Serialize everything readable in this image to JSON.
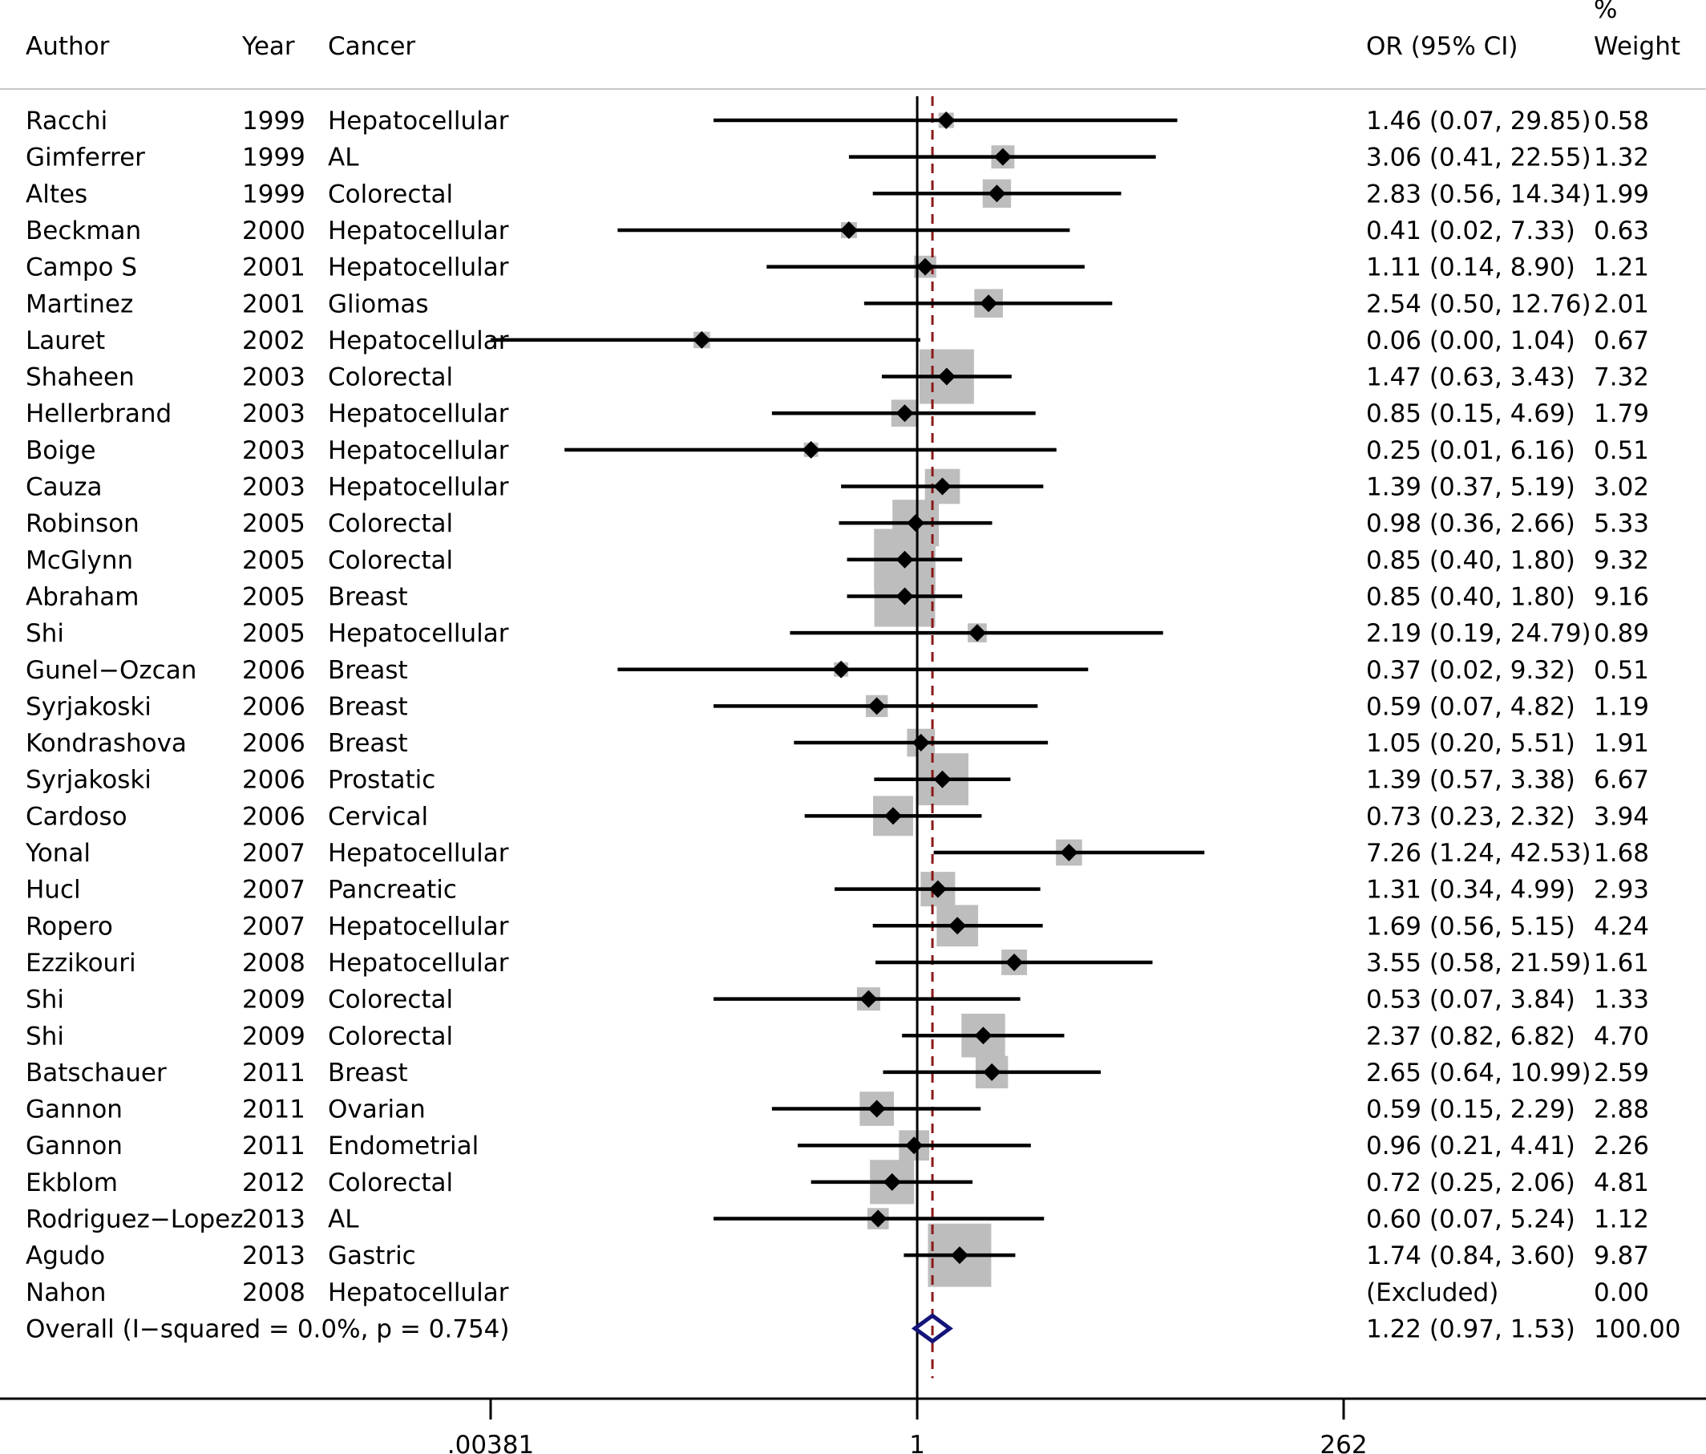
{
  "headers": {
    "author": "Author",
    "year": "Year",
    "cancer": "Cancer",
    "or": "OR (95% CI)",
    "weight_symbol": "%",
    "weight": "Weight"
  },
  "axis": {
    "scale": "log",
    "range": [
      0.00381,
      262
    ],
    "ticks": [
      {
        "value": 0.00381,
        "label": ".00381"
      },
      {
        "value": 1,
        "label": "1"
      },
      {
        "value": 262,
        "label": "262"
      }
    ],
    "null_line": 1,
    "pooled_line": 1.22
  },
  "colors": {
    "marker": "#000000",
    "weight_box": "#bdbdbd",
    "ci_line": "#000000",
    "pooled_line": "#8b1a1a",
    "overall_diamond": "#14147a"
  },
  "chart_data": {
    "type": "forest",
    "measure": "OR",
    "studies": [
      {
        "author": "Racchi",
        "year": "1999",
        "cancer": "Hepatocellular",
        "or": 1.46,
        "lo": 0.07,
        "hi": 29.85,
        "or_text": "1.46 (0.07, 29.85)",
        "weight": 0.58,
        "weight_text": "0.58"
      },
      {
        "author": "Gimferrer",
        "year": "1999",
        "cancer": "AL",
        "or": 3.06,
        "lo": 0.41,
        "hi": 22.55,
        "or_text": "3.06 (0.41, 22.55)",
        "weight": 1.32,
        "weight_text": "1.32"
      },
      {
        "author": "Altes",
        "year": "1999",
        "cancer": "Colorectal",
        "or": 2.83,
        "lo": 0.56,
        "hi": 14.34,
        "or_text": "2.83 (0.56, 14.34)",
        "weight": 1.99,
        "weight_text": "1.99"
      },
      {
        "author": "Beckman",
        "year": "2000",
        "cancer": "Hepatocellular",
        "or": 0.41,
        "lo": 0.02,
        "hi": 7.33,
        "or_text": "0.41 (0.02, 7.33)",
        "weight": 0.63,
        "weight_text": "0.63"
      },
      {
        "author": "Campo S",
        "year": "2001",
        "cancer": "Hepatocellular",
        "or": 1.11,
        "lo": 0.14,
        "hi": 8.9,
        "or_text": "1.11 (0.14, 8.90)",
        "weight": 1.21,
        "weight_text": "1.21"
      },
      {
        "author": "Martinez",
        "year": "2001",
        "cancer": "Gliomas",
        "or": 2.54,
        "lo": 0.5,
        "hi": 12.76,
        "or_text": "2.54 (0.50, 12.76)",
        "weight": 2.01,
        "weight_text": "2.01"
      },
      {
        "author": "Lauret",
        "year": "2002",
        "cancer": "Hepatocellular",
        "or": 0.06,
        "lo": 0.0,
        "hi": 1.04,
        "or_text": "0.06 (0.00, 1.04)",
        "weight": 0.67,
        "weight_text": "0.67"
      },
      {
        "author": "Shaheen",
        "year": "2003",
        "cancer": "Colorectal",
        "or": 1.47,
        "lo": 0.63,
        "hi": 3.43,
        "or_text": "1.47 (0.63, 3.43)",
        "weight": 7.32,
        "weight_text": "7.32"
      },
      {
        "author": "Hellerbrand",
        "year": "2003",
        "cancer": "Hepatocellular",
        "or": 0.85,
        "lo": 0.15,
        "hi": 4.69,
        "or_text": "0.85 (0.15, 4.69)",
        "weight": 1.79,
        "weight_text": "1.79"
      },
      {
        "author": "Boige",
        "year": "2003",
        "cancer": "Hepatocellular",
        "or": 0.25,
        "lo": 0.01,
        "hi": 6.16,
        "or_text": "0.25 (0.01, 6.16)",
        "weight": 0.51,
        "weight_text": "0.51"
      },
      {
        "author": "Cauza",
        "year": "2003",
        "cancer": "Hepatocellular",
        "or": 1.39,
        "lo": 0.37,
        "hi": 5.19,
        "or_text": "1.39 (0.37, 5.19)",
        "weight": 3.02,
        "weight_text": "3.02"
      },
      {
        "author": "Robinson",
        "year": "2005",
        "cancer": "Colorectal",
        "or": 0.98,
        "lo": 0.36,
        "hi": 2.66,
        "or_text": "0.98 (0.36, 2.66)",
        "weight": 5.33,
        "weight_text": "5.33"
      },
      {
        "author": "McGlynn",
        "year": "2005",
        "cancer": "Colorectal",
        "or": 0.85,
        "lo": 0.4,
        "hi": 1.8,
        "or_text": "0.85 (0.40, 1.80)",
        "weight": 9.32,
        "weight_text": "9.32"
      },
      {
        "author": "Abraham",
        "year": "2005",
        "cancer": "Breast",
        "or": 0.85,
        "lo": 0.4,
        "hi": 1.8,
        "or_text": "0.85 (0.40, 1.80)",
        "weight": 9.16,
        "weight_text": "9.16"
      },
      {
        "author": "Shi",
        "year": "2005",
        "cancer": "Hepatocellular",
        "or": 2.19,
        "lo": 0.19,
        "hi": 24.79,
        "or_text": "2.19 (0.19, 24.79)",
        "weight": 0.89,
        "weight_text": "0.89"
      },
      {
        "author": "Gunel−Ozcan",
        "year": "2006",
        "cancer": "Breast",
        "or": 0.37,
        "lo": 0.02,
        "hi": 9.32,
        "or_text": "0.37 (0.02, 9.32)",
        "weight": 0.51,
        "weight_text": "0.51"
      },
      {
        "author": "Syrjakoski",
        "year": "2006",
        "cancer": "Breast",
        "or": 0.59,
        "lo": 0.07,
        "hi": 4.82,
        "or_text": "0.59 (0.07, 4.82)",
        "weight": 1.19,
        "weight_text": "1.19"
      },
      {
        "author": "Kondrashova",
        "year": "2006",
        "cancer": "Breast",
        "or": 1.05,
        "lo": 0.2,
        "hi": 5.51,
        "or_text": "1.05 (0.20, 5.51)",
        "weight": 1.91,
        "weight_text": "1.91"
      },
      {
        "author": "Syrjakoski",
        "year": "2006",
        "cancer": "Prostatic",
        "or": 1.39,
        "lo": 0.57,
        "hi": 3.38,
        "or_text": "1.39 (0.57, 3.38)",
        "weight": 6.67,
        "weight_text": "6.67"
      },
      {
        "author": "Cardoso",
        "year": "2006",
        "cancer": "Cervical",
        "or": 0.73,
        "lo": 0.23,
        "hi": 2.32,
        "or_text": "0.73 (0.23, 2.32)",
        "weight": 3.94,
        "weight_text": "3.94"
      },
      {
        "author": "Yonal",
        "year": "2007",
        "cancer": "Hepatocellular",
        "or": 7.26,
        "lo": 1.24,
        "hi": 42.53,
        "or_text": "7.26 (1.24, 42.53)",
        "weight": 1.68,
        "weight_text": "1.68"
      },
      {
        "author": "Hucl",
        "year": "2007",
        "cancer": "Pancreatic",
        "or": 1.31,
        "lo": 0.34,
        "hi": 4.99,
        "or_text": "1.31 (0.34, 4.99)",
        "weight": 2.93,
        "weight_text": "2.93"
      },
      {
        "author": "Ropero",
        "year": "2007",
        "cancer": "Hepatocellular",
        "or": 1.69,
        "lo": 0.56,
        "hi": 5.15,
        "or_text": "1.69 (0.56, 5.15)",
        "weight": 4.24,
        "weight_text": "4.24"
      },
      {
        "author": "Ezzikouri",
        "year": "2008",
        "cancer": "Hepatocellular",
        "or": 3.55,
        "lo": 0.58,
        "hi": 21.59,
        "or_text": "3.55 (0.58, 21.59)",
        "weight": 1.61,
        "weight_text": "1.61"
      },
      {
        "author": "Shi",
        "year": "2009",
        "cancer": "Colorectal",
        "or": 0.53,
        "lo": 0.07,
        "hi": 3.84,
        "or_text": "0.53 (0.07, 3.84)",
        "weight": 1.33,
        "weight_text": "1.33"
      },
      {
        "author": "Shi",
        "year": "2009",
        "cancer": "Colorectal",
        "or": 2.37,
        "lo": 0.82,
        "hi": 6.82,
        "or_text": "2.37 (0.82, 6.82)",
        "weight": 4.7,
        "weight_text": "4.70"
      },
      {
        "author": "Batschauer",
        "year": "2011",
        "cancer": "Breast",
        "or": 2.65,
        "lo": 0.64,
        "hi": 10.99,
        "or_text": "2.65 (0.64, 10.99)",
        "weight": 2.59,
        "weight_text": "2.59"
      },
      {
        "author": "Gannon",
        "year": "2011",
        "cancer": "Ovarian",
        "or": 0.59,
        "lo": 0.15,
        "hi": 2.29,
        "or_text": "0.59 (0.15, 2.29)",
        "weight": 2.88,
        "weight_text": "2.88"
      },
      {
        "author": "Gannon",
        "year": "2011",
        "cancer": "Endometrial",
        "or": 0.96,
        "lo": 0.21,
        "hi": 4.41,
        "or_text": "0.96 (0.21, 4.41)",
        "weight": 2.26,
        "weight_text": "2.26"
      },
      {
        "author": "Ekblom",
        "year": "2012",
        "cancer": "Colorectal",
        "or": 0.72,
        "lo": 0.25,
        "hi": 2.06,
        "or_text": "0.72 (0.25, 2.06)",
        "weight": 4.81,
        "weight_text": "4.81"
      },
      {
        "author": "Rodriguez−Lopez",
        "year": "2013",
        "cancer": "AL",
        "or": 0.6,
        "lo": 0.07,
        "hi": 5.24,
        "or_text": "0.60 (0.07, 5.24)",
        "weight": 1.12,
        "weight_text": "1.12"
      },
      {
        "author": "Agudo",
        "year": "2013",
        "cancer": "Gastric",
        "or": 1.74,
        "lo": 0.84,
        "hi": 3.6,
        "or_text": "1.74 (0.84, 3.60)",
        "weight": 9.87,
        "weight_text": "9.87"
      },
      {
        "author": "Nahon",
        "year": "2008",
        "cancer": "Hepatocellular",
        "or": null,
        "lo": null,
        "hi": null,
        "or_text": "(Excluded)",
        "weight": 0.0,
        "weight_text": "0.00"
      }
    ],
    "overall": {
      "label": "Overall  (I−squared = 0.0%, p = 0.754)",
      "or": 1.22,
      "lo": 0.97,
      "hi": 1.53,
      "or_text": "1.22 (0.97, 1.53)",
      "weight_text": "100.00"
    }
  }
}
